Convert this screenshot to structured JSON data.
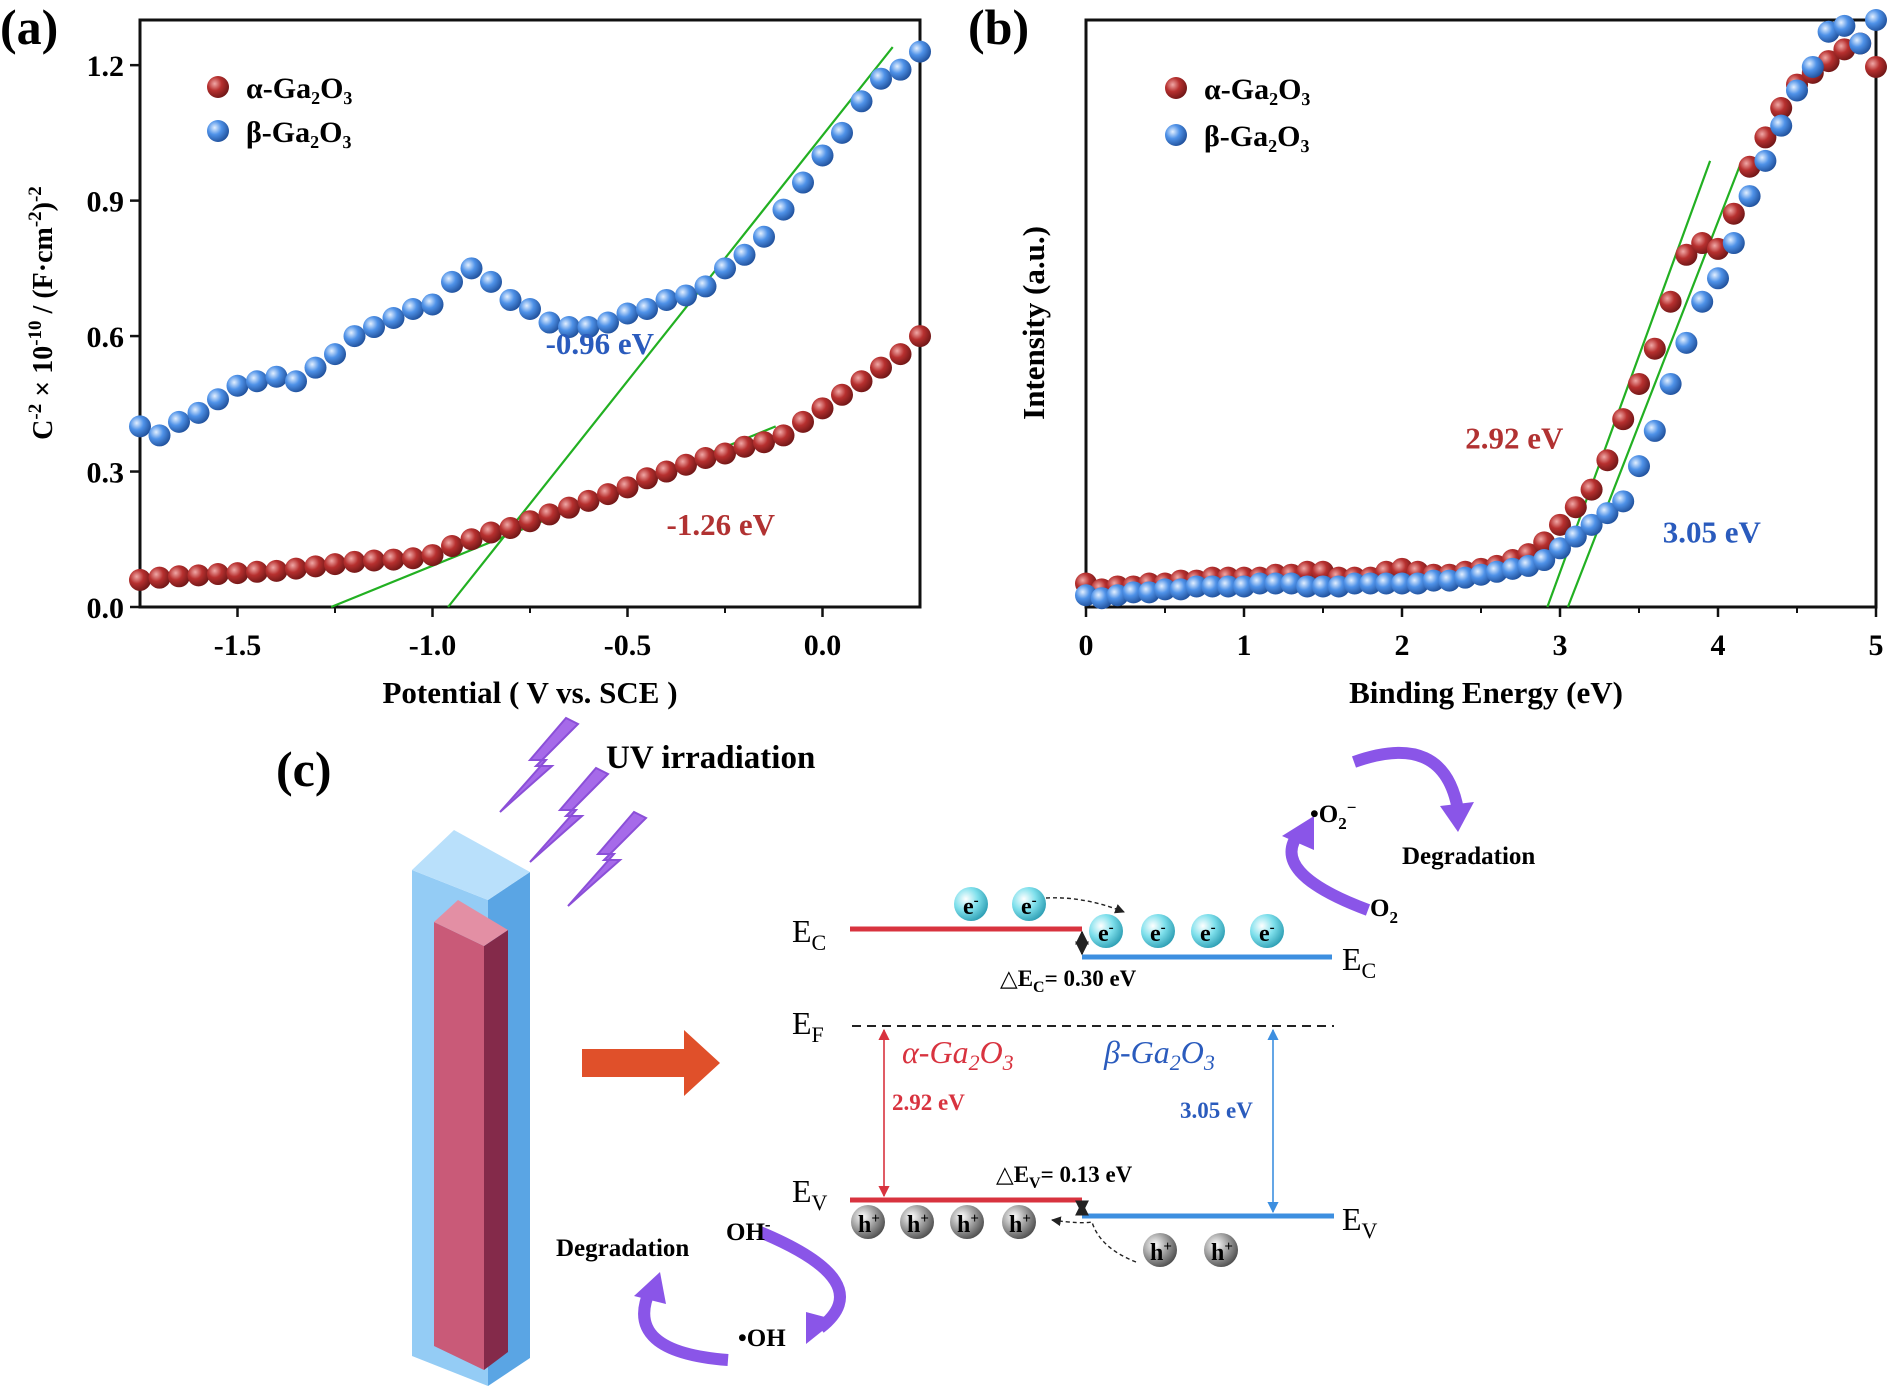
{
  "colors": {
    "alpha": "#b7302f",
    "beta": "#4f92e8",
    "fit": "#22b022",
    "annot_alpha": "#b13232",
    "annot_beta": "#2a5bbd",
    "bar_alpha": "#d8333f",
    "bar_beta": "#3d8fe0",
    "electron": "#7fe0ec",
    "hole": "#8f8f8f",
    "cycle_arrow": "#8a55e8",
    "lightning": "#a66ae9",
    "block_arrow": "#e0502a",
    "rod_outer": "#8ec9f4",
    "rod_inner": "#c95a78"
  },
  "chart_data": [
    {
      "type": "scatter",
      "panel_label": "(a)",
      "xlabel": "Potential ( V vs. SCE )",
      "ylabel_parts": [
        "C",
        "-2",
        " × 10",
        "-10",
        " / (F·cm",
        "-2",
        ")",
        "-2"
      ],
      "xlim": [
        -1.75,
        0.25
      ],
      "ylim": [
        0.0,
        1.3
      ],
      "xticks": [
        -1.5,
        -1.0,
        -0.5,
        0.0
      ],
      "xtick_labels": [
        "-1.5",
        "-1.0",
        "-0.5",
        "0.0"
      ],
      "yticks": [
        0.0,
        0.3,
        0.6,
        0.9,
        1.2
      ],
      "ytick_labels": [
        "0.0",
        "0.3",
        "0.6",
        "0.9",
        "1.2"
      ],
      "legend_position": "top-left",
      "series": [
        {
          "name": "α-Ga₂O₃",
          "color_key": "alpha",
          "x": [
            -1.75,
            -1.7,
            -1.65,
            -1.6,
            -1.55,
            -1.5,
            -1.45,
            -1.4,
            -1.35,
            -1.3,
            -1.25,
            -1.2,
            -1.15,
            -1.1,
            -1.05,
            -1.0,
            -0.95,
            -0.9,
            -0.85,
            -0.8,
            -0.75,
            -0.7,
            -0.65,
            -0.6,
            -0.55,
            -0.5,
            -0.45,
            -0.4,
            -0.35,
            -0.3,
            -0.25,
            -0.2,
            -0.15,
            -0.1,
            -0.05,
            0.0,
            0.05,
            0.1,
            0.15,
            0.2,
            0.25
          ],
          "y": [
            0.06,
            0.065,
            0.068,
            0.07,
            0.073,
            0.075,
            0.078,
            0.08,
            0.085,
            0.09,
            0.095,
            0.1,
            0.103,
            0.105,
            0.108,
            0.115,
            0.135,
            0.15,
            0.165,
            0.175,
            0.19,
            0.205,
            0.22,
            0.235,
            0.25,
            0.265,
            0.285,
            0.3,
            0.315,
            0.33,
            0.34,
            0.355,
            0.365,
            0.38,
            0.41,
            0.44,
            0.47,
            0.5,
            0.53,
            0.56,
            0.6
          ]
        },
        {
          "name": "β-Ga₂O₃",
          "color_key": "beta",
          "x": [
            -1.75,
            -1.7,
            -1.65,
            -1.6,
            -1.55,
            -1.5,
            -1.45,
            -1.4,
            -1.35,
            -1.3,
            -1.25,
            -1.2,
            -1.15,
            -1.1,
            -1.05,
            -1.0,
            -0.95,
            -0.9,
            -0.85,
            -0.8,
            -0.75,
            -0.7,
            -0.65,
            -0.6,
            -0.55,
            -0.5,
            -0.45,
            -0.4,
            -0.35,
            -0.3,
            -0.25,
            -0.2,
            -0.15,
            -0.1,
            -0.05,
            0.0,
            0.05,
            0.1,
            0.15,
            0.2,
            0.25
          ],
          "y": [
            0.4,
            0.38,
            0.41,
            0.43,
            0.46,
            0.49,
            0.5,
            0.51,
            0.5,
            0.53,
            0.56,
            0.6,
            0.62,
            0.64,
            0.66,
            0.67,
            0.72,
            0.75,
            0.72,
            0.68,
            0.66,
            0.63,
            0.62,
            0.62,
            0.63,
            0.65,
            0.66,
            0.68,
            0.69,
            0.71,
            0.75,
            0.78,
            0.82,
            0.88,
            0.94,
            1.0,
            1.05,
            1.12,
            1.17,
            1.19,
            1.23
          ]
        }
      ],
      "fit_lines": [
        {
          "x": [
            -0.96,
            0.18
          ],
          "y": [
            0.0,
            1.24
          ]
        },
        {
          "x": [
            -1.26,
            -0.12
          ],
          "y": [
            0.0,
            0.4
          ]
        }
      ],
      "annotations": [
        {
          "text": "-0.96 eV",
          "x": -0.71,
          "y": 0.56,
          "color_key": "annot_beta"
        },
        {
          "text": "-1.26 eV",
          "x": -0.4,
          "y": 0.16,
          "color_key": "annot_alpha"
        }
      ]
    },
    {
      "type": "scatter",
      "panel_label": "(b)",
      "xlabel": "Binding Energy (eV)",
      "ylabel": "Intensity (a.u.)",
      "xlim": [
        0,
        5
      ],
      "ylim": [
        0,
        1.0
      ],
      "xticks": [
        0,
        1,
        2,
        3,
        4,
        5
      ],
      "xtick_labels": [
        "0",
        "1",
        "2",
        "3",
        "4",
        "5"
      ],
      "y_tick_labels_shown": false,
      "legend_position": "top-left",
      "series": [
        {
          "name": "α-Ga₂O₃",
          "color_key": "alpha",
          "x": [
            0.0,
            0.1,
            0.2,
            0.3,
            0.4,
            0.5,
            0.6,
            0.7,
            0.8,
            0.9,
            1.0,
            1.1,
            1.2,
            1.3,
            1.4,
            1.5,
            1.6,
            1.7,
            1.8,
            1.9,
            2.0,
            2.1,
            2.2,
            2.3,
            2.4,
            2.5,
            2.6,
            2.7,
            2.8,
            2.9,
            3.0,
            3.1,
            3.2,
            3.3,
            3.4,
            3.5,
            3.6,
            3.7,
            3.8,
            3.9,
            4.0,
            4.1,
            4.2,
            4.3,
            4.4,
            4.5,
            4.6,
            4.7,
            4.8,
            4.9,
            5.0
          ],
          "y": [
            0.04,
            0.03,
            0.035,
            0.035,
            0.04,
            0.04,
            0.045,
            0.045,
            0.05,
            0.05,
            0.05,
            0.05,
            0.055,
            0.055,
            0.06,
            0.06,
            0.05,
            0.05,
            0.05,
            0.06,
            0.065,
            0.06,
            0.055,
            0.055,
            0.06,
            0.065,
            0.07,
            0.08,
            0.09,
            0.11,
            0.14,
            0.17,
            0.2,
            0.25,
            0.32,
            0.38,
            0.44,
            0.52,
            0.6,
            0.62,
            0.61,
            0.67,
            0.75,
            0.8,
            0.85,
            0.89,
            0.91,
            0.93,
            0.95,
            0.96,
            0.92
          ]
        },
        {
          "name": "β-Ga₂O₃",
          "color_key": "beta",
          "x": [
            0.0,
            0.1,
            0.2,
            0.3,
            0.4,
            0.5,
            0.6,
            0.7,
            0.8,
            0.9,
            1.0,
            1.1,
            1.2,
            1.3,
            1.4,
            1.5,
            1.6,
            1.7,
            1.8,
            1.9,
            2.0,
            2.1,
            2.2,
            2.3,
            2.4,
            2.5,
            2.6,
            2.7,
            2.8,
            2.9,
            3.0,
            3.1,
            3.2,
            3.3,
            3.4,
            3.5,
            3.6,
            3.7,
            3.8,
            3.9,
            4.0,
            4.1,
            4.2,
            4.3,
            4.4,
            4.5,
            4.6,
            4.7,
            4.8,
            4.9,
            5.0
          ],
          "y": [
            0.02,
            0.015,
            0.02,
            0.025,
            0.025,
            0.03,
            0.03,
            0.035,
            0.035,
            0.035,
            0.035,
            0.04,
            0.04,
            0.04,
            0.035,
            0.035,
            0.035,
            0.04,
            0.04,
            0.04,
            0.04,
            0.04,
            0.045,
            0.045,
            0.05,
            0.055,
            0.06,
            0.065,
            0.07,
            0.08,
            0.1,
            0.12,
            0.14,
            0.16,
            0.18,
            0.24,
            0.3,
            0.38,
            0.45,
            0.52,
            0.56,
            0.62,
            0.7,
            0.76,
            0.82,
            0.88,
            0.92,
            0.98,
            0.99,
            0.96,
            1.0
          ]
        }
      ],
      "fit_lines": [
        {
          "x": [
            2.92,
            3.95
          ],
          "y": [
            0.0,
            0.76
          ]
        },
        {
          "x": [
            3.05,
            4.15
          ],
          "y": [
            0.0,
            0.76
          ]
        }
      ],
      "annotations": [
        {
          "text": "2.92 eV",
          "x": 2.4,
          "y": 0.27,
          "color_key": "annot_alpha"
        },
        {
          "text": "3.05 eV",
          "x": 3.65,
          "y": 0.11,
          "color_key": "annot_beta"
        }
      ]
    }
  ],
  "diagram_c": {
    "panel_label": "(c)",
    "uv_label": "UV irradiation",
    "ec": "E",
    "ec_sub": "C",
    "ef": "E",
    "ef_sub": "F",
    "ev": "E",
    "ev_sub": "V",
    "delta_ec": "△E",
    "delta_ec_sub": "C",
    "delta_ec_val": "= 0.30 eV",
    "delta_ev": "△E",
    "delta_ev_sub": "V",
    "delta_ev_val": "= 0.13 eV",
    "alpha_name": "α-Ga",
    "beta_name": "β-Ga",
    "name_sub2": "2",
    "name_o": "O",
    "name_sub3": "3",
    "gap_alpha": "2.92 eV",
    "gap_beta": "3.05 eV",
    "degradation_top": "Degradation",
    "degradation_bottom": "Degradation",
    "o2_radical": "•O",
    "o2_radical_sub": "2",
    "o2_radical_sup": "−",
    "o2": "O",
    "o2_sub": "2",
    "oh_minus": "OH",
    "oh_minus_sup": "-",
    "oh_radical": "•OH",
    "electron": "e",
    "electron_sup": "-",
    "hole": "h",
    "hole_sup": "+"
  }
}
